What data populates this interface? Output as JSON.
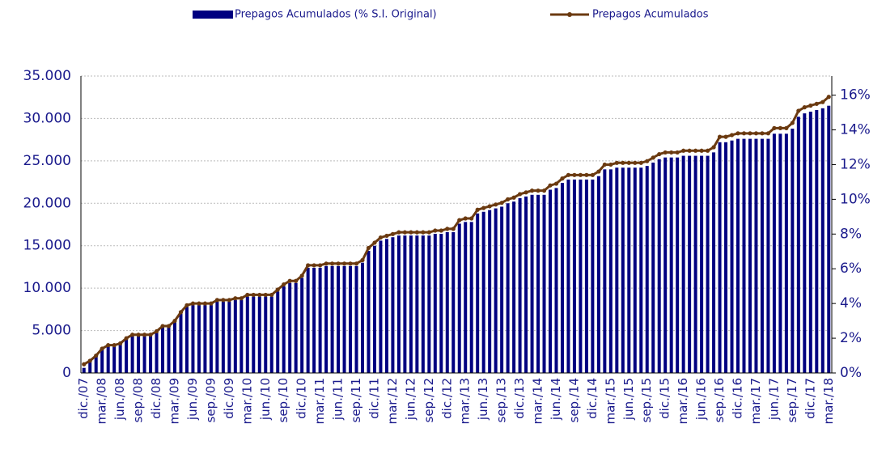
{
  "chart_data": {
    "type": "bar_line",
    "categories": [
      "dic./07",
      null,
      null,
      "mar./08",
      null,
      null,
      "jun./08",
      null,
      null,
      "sep./08",
      null,
      null,
      "dic./08",
      null,
      null,
      "mar./09",
      null,
      null,
      "jun./09",
      null,
      null,
      "sep./09",
      null,
      null,
      "dic./09",
      null,
      null,
      "mar./10",
      null,
      null,
      "jun./10",
      null,
      null,
      "sep./10",
      null,
      null,
      "dic./10",
      null,
      null,
      "mar./11",
      null,
      null,
      "jun./11",
      null,
      null,
      "sep./11",
      null,
      null,
      "dic./11",
      null,
      null,
      "mar./12",
      null,
      null,
      "jun./12",
      null,
      null,
      "sep./12",
      null,
      null,
      "dic./12",
      null,
      null,
      "mar./13",
      null,
      null,
      "jun./13",
      null,
      null,
      "sep./13",
      null,
      null,
      "dic./13",
      null,
      null,
      "mar./14",
      null,
      null,
      "jun./14",
      null,
      null,
      "sep./14",
      null,
      null,
      "dic./14",
      null,
      null,
      "mar./15",
      null,
      null,
      "jun./15",
      null,
      null,
      "sep./15",
      null,
      null,
      "dic./15",
      null,
      null,
      "mar./16",
      null,
      null,
      "jun./16",
      null,
      null,
      "sep./16",
      null,
      null,
      "dic./16",
      null,
      null,
      "mar./17",
      null,
      null,
      "jun./17",
      null,
      null,
      "sep./17",
      null,
      null,
      "dic./17",
      null,
      null,
      "mar./18"
    ],
    "series": [
      {
        "name": "Prepagos Acumulados (% S.I. Original)",
        "color": "#000080",
        "values": [
          600,
          1400,
          2000,
          2800,
          3200,
          3200,
          3400,
          4000,
          4400,
          4400,
          4400,
          4400,
          4800,
          5400,
          5400,
          6000,
          7000,
          7800,
          8000,
          8000,
          8000,
          8000,
          8400,
          8400,
          8400,
          8600,
          8600,
          9000,
          9000,
          9000,
          9000,
          9000,
          9600,
          10200,
          10600,
          10600,
          11200,
          12400,
          12400,
          12400,
          12600,
          12600,
          12600,
          12600,
          12600,
          12600,
          13000,
          14400,
          15000,
          15600,
          15800,
          16000,
          16200,
          16200,
          16200,
          16200,
          16200,
          16200,
          16400,
          16400,
          16600,
          16600,
          17600,
          17800,
          17800,
          18800,
          19000,
          19200,
          19400,
          19600,
          20000,
          20200,
          20600,
          20800,
          21000,
          21000,
          21000,
          21600,
          21800,
          22400,
          22800,
          22800,
          22800,
          22800,
          22800,
          23200,
          24000,
          24000,
          24200,
          24200,
          24200,
          24200,
          24200,
          24400,
          24800,
          25200,
          25400,
          25400,
          25400,
          25600,
          25600,
          25600,
          25600,
          25600,
          26000,
          27200,
          27200,
          27400,
          27600,
          27600,
          27600,
          27600,
          27600,
          27600,
          28200,
          28200,
          28200,
          28800,
          30200,
          30600,
          30800,
          31000,
          31200,
          31500
        ]
      },
      {
        "name": "Prepagos Acumulados",
        "color": "#6b3a10",
        "axis": "y2",
        "values": [
          0.5,
          0.7,
          1.0,
          1.4,
          1.6,
          1.6,
          1.7,
          2.0,
          2.2,
          2.2,
          2.2,
          2.2,
          2.4,
          2.7,
          2.7,
          3.0,
          3.5,
          3.9,
          4.0,
          4.0,
          4.0,
          4.0,
          4.2,
          4.2,
          4.2,
          4.3,
          4.3,
          4.5,
          4.5,
          4.5,
          4.5,
          4.5,
          4.8,
          5.1,
          5.3,
          5.3,
          5.6,
          6.2,
          6.2,
          6.2,
          6.3,
          6.3,
          6.3,
          6.3,
          6.3,
          6.3,
          6.5,
          7.2,
          7.5,
          7.8,
          7.9,
          8.0,
          8.1,
          8.1,
          8.1,
          8.1,
          8.1,
          8.1,
          8.2,
          8.2,
          8.3,
          8.3,
          8.8,
          8.9,
          8.9,
          9.4,
          9.5,
          9.6,
          9.7,
          9.8,
          10.0,
          10.1,
          10.3,
          10.4,
          10.5,
          10.5,
          10.5,
          10.8,
          10.9,
          11.2,
          11.4,
          11.4,
          11.4,
          11.4,
          11.4,
          11.6,
          12.0,
          12.0,
          12.1,
          12.1,
          12.1,
          12.1,
          12.1,
          12.2,
          12.4,
          12.6,
          12.7,
          12.7,
          12.7,
          12.8,
          12.8,
          12.8,
          12.8,
          12.8,
          13.0,
          13.6,
          13.6,
          13.7,
          13.8,
          13.8,
          13.8,
          13.8,
          13.8,
          13.8,
          14.1,
          14.1,
          14.1,
          14.4,
          15.1,
          15.3,
          15.4,
          15.5,
          15.6,
          15.9
        ]
      }
    ],
    "ylim": [
      0,
      35000
    ],
    "yticks": [
      0,
      {
        "value": 5000,
        "label": "5.000"
      },
      {
        "value": 10000,
        "label": "10.000"
      },
      {
        "value": 15000,
        "label": "15.000"
      },
      {
        "value": 20000,
        "label": "20.000"
      },
      {
        "value": 25000,
        "label": "25.000"
      },
      {
        "value": 30000,
        "label": "30.000"
      },
      {
        "value": 35000,
        "label": "35.000"
      }
    ],
    "y2lim": [
      0,
      17.1
    ],
    "y2ticks": [
      {
        "value": 0,
        "label": "0%"
      },
      {
        "value": 2,
        "label": "2%"
      },
      {
        "value": 4,
        "label": "4%"
      },
      {
        "value": 6,
        "label": "6%"
      },
      {
        "value": 8,
        "label": "8%"
      },
      {
        "value": 10,
        "label": "10%"
      },
      {
        "value": 12,
        "label": "12%"
      },
      {
        "value": 14,
        "label": "14%"
      },
      {
        "value": 16,
        "label": "16%"
      }
    ],
    "grid": true,
    "legend": "top"
  }
}
